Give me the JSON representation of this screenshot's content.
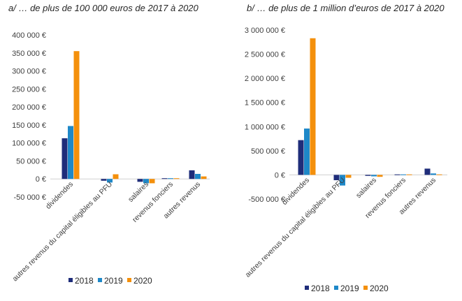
{
  "figure": {
    "panel_a_title": "a/ … de plus de 100 000 euros de 2017 à 2020",
    "panel_b_title": "b/ … de plus de 1 million d’euros de 2017 à 2020"
  },
  "colors": {
    "2018": "#1f2d7a",
    "2019": "#1e88c8",
    "2020": "#f4900c"
  },
  "chart_data": [
    {
      "type": "bar",
      "title": "a/ … de plus de 100 000 euros de 2017 à 2020",
      "categories": [
        "dividendes",
        "autres revenus du capital éligibles au PFU",
        "salaires",
        "revenus fonciers",
        "autres revenus"
      ],
      "series": [
        {
          "name": "2018",
          "values": [
            113000,
            -5000,
            -8000,
            2000,
            24000
          ]
        },
        {
          "name": "2019",
          "values": [
            147000,
            -10000,
            -12000,
            2000,
            14000
          ]
        },
        {
          "name": "2020",
          "values": [
            355000,
            13000,
            -12000,
            2000,
            7000
          ]
        }
      ],
      "ylim": [
        -50000,
        400000
      ],
      "yticks": [
        -50000,
        0,
        50000,
        100000,
        150000,
        200000,
        250000,
        300000,
        350000,
        400000
      ],
      "ytick_labels": [
        "-50 000 €",
        "0 €",
        "50 000 €",
        "100 000 €",
        "150 000 €",
        "200 000 €",
        "250 000 €",
        "300 000 €",
        "350 000 €",
        "400 000 €"
      ],
      "legend_position": "bottom"
    },
    {
      "type": "bar",
      "title": "b/ … de plus de 1 million d’euros de 2017 à 2020",
      "categories": [
        "dividendes",
        "autres revenus du capital éligibles au PFU",
        "salaires",
        "revenus fonciers",
        "autres revenus"
      ],
      "series": [
        {
          "name": "2018",
          "values": [
            720000,
            -110000,
            -20000,
            10000,
            130000
          ]
        },
        {
          "name": "2019",
          "values": [
            960000,
            -220000,
            -30000,
            10000,
            30000
          ]
        },
        {
          "name": "2020",
          "values": [
            2830000,
            -60000,
            -40000,
            10000,
            10000
          ]
        }
      ],
      "ylim": [
        -500000,
        3000000
      ],
      "yticks": [
        -500000,
        0,
        500000,
        1000000,
        1500000,
        2000000,
        2500000,
        3000000
      ],
      "ytick_labels": [
        "-500 000 €",
        "0 €",
        "500 000 €",
        "1 000 000 €",
        "1 500 000 €",
        "2 000 000 €",
        "2 500 000 €",
        "3 000 000 €"
      ],
      "legend_position": "bottom"
    }
  ]
}
